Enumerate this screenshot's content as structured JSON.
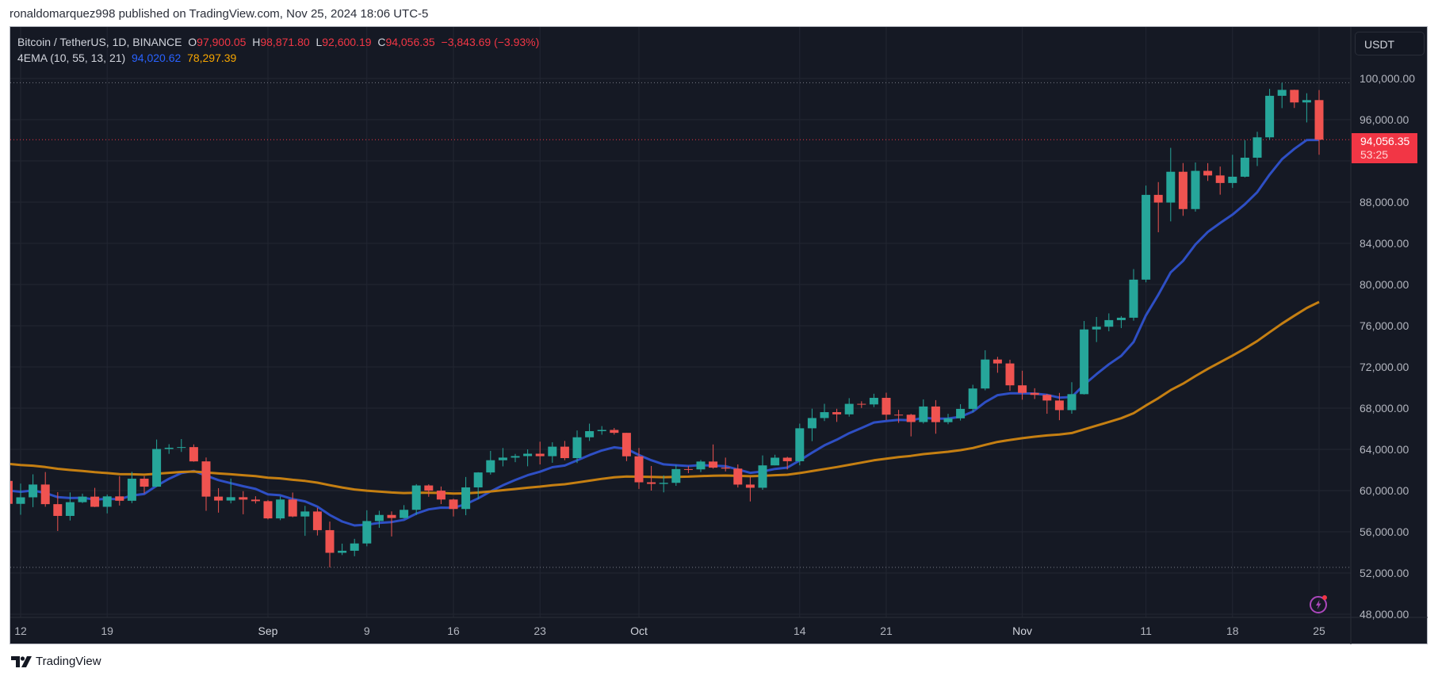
{
  "header": {
    "published": "ronaldomarquez998 published on TradingView.com, Nov 25, 2024 18:06 UTC-5"
  },
  "legend": {
    "symbol": "Bitcoin / TetherUS, 1D, BINANCE",
    "o_label": "O",
    "o": "97,900.05",
    "h_label": "H",
    "h": "98,871.80",
    "l_label": "L",
    "l": "92,600.19",
    "c_label": "C",
    "c": "94,056.35",
    "change": "−3,843.69 (−3.93%)",
    "indicator": "4EMA (10, 55, 13, 21)",
    "ema1": "94,020.62",
    "ema2": "78,297.39"
  },
  "price_axis": {
    "currency": "USDT",
    "labels": [
      "100,000.00",
      "96,000.00",
      "88,000.00",
      "84,000.00",
      "80,000.00",
      "76,000.00",
      "72,000.00",
      "68,000.00",
      "64,000.00",
      "60,000.00",
      "56,000.00",
      "52,000.00",
      "48,000.00"
    ],
    "last_price": "94,056.35",
    "countdown": "53:25"
  },
  "time_axis": {
    "labels": [
      "12",
      "19",
      "Sep",
      "9",
      "16",
      "23",
      "Oct",
      "14",
      "21",
      "Nov",
      "11",
      "18",
      "25"
    ]
  },
  "footer": {
    "brand": "TradingView"
  },
  "colors": {
    "up": "#26a69a",
    "down": "#ef5350",
    "ema10": "#2e4fc4",
    "ema55": "#c57f12",
    "background": "#151924"
  },
  "chart_data": {
    "type": "candlestick",
    "title": "Bitcoin / TetherUS, 1D, BINANCE",
    "ylim": [
      47500,
      101500
    ],
    "yticks": [
      48000,
      52000,
      56000,
      60000,
      64000,
      68000,
      72000,
      76000,
      80000,
      84000,
      88000,
      92000,
      96000,
      100000
    ],
    "xticks": [
      "2024-08-12",
      "2024-08-19",
      "2024-09-01",
      "2024-09-09",
      "2024-09-16",
      "2024-09-23",
      "2024-10-01",
      "2024-10-14",
      "2024-10-21",
      "2024-11-01",
      "2024-11-11",
      "2024-11-18",
      "2024-11-25"
    ],
    "grid": true,
    "columns": [
      "date",
      "open",
      "high",
      "low",
      "close"
    ],
    "candles": [
      [
        "2024-08-11",
        60940,
        61858,
        58286,
        58713
      ],
      [
        "2024-08-12",
        58713,
        60680,
        57650,
        59346
      ],
      [
        "2024-08-13",
        59346,
        61578,
        58392,
        60587
      ],
      [
        "2024-08-14",
        60587,
        61800,
        58433,
        58683
      ],
      [
        "2024-08-15",
        58683,
        59849,
        56078,
        57541
      ],
      [
        "2024-08-16",
        57541,
        59817,
        57098,
        58875
      ],
      [
        "2024-08-17",
        58875,
        59700,
        58785,
        59413
      ],
      [
        "2024-08-18",
        59413,
        60263,
        58400,
        58425
      ],
      [
        "2024-08-19",
        58425,
        59618,
        57787,
        59438
      ],
      [
        "2024-08-20",
        59438,
        61400,
        58548,
        59013
      ],
      [
        "2024-08-21",
        59013,
        61820,
        58783,
        61157
      ],
      [
        "2024-08-22",
        61157,
        61400,
        59724,
        60381
      ],
      [
        "2024-08-23",
        60381,
        64955,
        60345,
        64038
      ],
      [
        "2024-08-24",
        64038,
        64500,
        63564,
        64158
      ],
      [
        "2024-08-25",
        64158,
        65000,
        63750,
        64220
      ],
      [
        "2024-08-26",
        64220,
        64481,
        62800,
        62834
      ],
      [
        "2024-08-27",
        62834,
        63212,
        58034,
        59415
      ],
      [
        "2024-08-28",
        59415,
        60234,
        57860,
        59034
      ],
      [
        "2024-08-29",
        59034,
        61166,
        58760,
        59359
      ],
      [
        "2024-08-30",
        59359,
        59944,
        57701,
        59123
      ],
      [
        "2024-08-31",
        59123,
        59450,
        58745,
        58973
      ],
      [
        "2024-09-01",
        58973,
        59084,
        57201,
        57301
      ],
      [
        "2024-09-02",
        57301,
        59425,
        57128,
        59132
      ],
      [
        "2024-09-03",
        59132,
        59809,
        57415,
        57487
      ],
      [
        "2024-09-04",
        57487,
        58519,
        55606,
        57970
      ],
      [
        "2024-09-05",
        57970,
        58327,
        55643,
        56160
      ],
      [
        "2024-09-06",
        56160,
        56995,
        52550,
        53962
      ],
      [
        "2024-09-07",
        53962,
        54850,
        53745,
        54160
      ],
      [
        "2024-09-08",
        54160,
        55318,
        53629,
        54869
      ],
      [
        "2024-09-09",
        54869,
        58088,
        54591,
        57042
      ],
      [
        "2024-09-10",
        57042,
        58044,
        56386,
        57635
      ],
      [
        "2024-09-11",
        57635,
        57981,
        55545,
        57338
      ],
      [
        "2024-09-12",
        57338,
        58588,
        57311,
        58132
      ],
      [
        "2024-09-13",
        58132,
        60625,
        57632,
        60498
      ],
      [
        "2024-09-14",
        60498,
        60610,
        59400,
        59993
      ],
      [
        "2024-09-15",
        59993,
        60395,
        58691,
        59132
      ],
      [
        "2024-09-16",
        59132,
        59210,
        57493,
        58213
      ],
      [
        "2024-09-17",
        58213,
        61320,
        57610,
        60309
      ],
      [
        "2024-09-18",
        60309,
        61786,
        59174,
        61759
      ],
      [
        "2024-09-19",
        61759,
        63850,
        61555,
        62947
      ],
      [
        "2024-09-20",
        62947,
        64133,
        62350,
        63201
      ],
      [
        "2024-09-21",
        63201,
        63559,
        62758,
        63348
      ],
      [
        "2024-09-22",
        63348,
        64000,
        62357,
        63578
      ],
      [
        "2024-09-23",
        63578,
        64745,
        62538,
        63339
      ],
      [
        "2024-09-24",
        63339,
        64688,
        62700,
        64262
      ],
      [
        "2024-09-25",
        64262,
        64817,
        62947,
        63152
      ],
      [
        "2024-09-26",
        63152,
        65839,
        62670,
        65173
      ],
      [
        "2024-09-27",
        65173,
        66498,
        64819,
        65769
      ],
      [
        "2024-09-28",
        65769,
        66260,
        65422,
        65887
      ],
      [
        "2024-09-29",
        65887,
        66076,
        65432,
        65604
      ],
      [
        "2024-09-30",
        65604,
        65604,
        62856,
        63327
      ],
      [
        "2024-10-01",
        63327,
        64130,
        60164,
        60805
      ],
      [
        "2024-10-02",
        60805,
        62390,
        60000,
        60649
      ],
      [
        "2024-10-03",
        60649,
        61477,
        59828,
        60752
      ],
      [
        "2024-10-04",
        60752,
        62484,
        60459,
        62086
      ],
      [
        "2024-10-05",
        62086,
        62370,
        61689,
        62058
      ],
      [
        "2024-10-06",
        62058,
        62975,
        61798,
        62819
      ],
      [
        "2024-10-07",
        62819,
        64478,
        62128,
        62224
      ],
      [
        "2024-10-08",
        62224,
        63200,
        61860,
        62132
      ],
      [
        "2024-10-09",
        62132,
        62543,
        60300,
        60582
      ],
      [
        "2024-10-10",
        60582,
        61320,
        58946,
        60274
      ],
      [
        "2024-10-11",
        60274,
        63417,
        60078,
        62445
      ],
      [
        "2024-10-12",
        62445,
        63480,
        62445,
        63193
      ],
      [
        "2024-10-13",
        63193,
        63285,
        62050,
        62851
      ],
      [
        "2024-10-14",
        62851,
        66500,
        62450,
        66046
      ],
      [
        "2024-10-15",
        66046,
        67950,
        64800,
        67041
      ],
      [
        "2024-10-16",
        67041,
        68424,
        66750,
        67612
      ],
      [
        "2024-10-17",
        67612,
        67939,
        66666,
        67399
      ],
      [
        "2024-10-18",
        67399,
        68969,
        67177,
        68418
      ],
      [
        "2024-10-19",
        68418,
        68668,
        68013,
        68362
      ],
      [
        "2024-10-20",
        68362,
        69400,
        68100,
        69001
      ],
      [
        "2024-10-21",
        69001,
        69500,
        66835,
        67367
      ],
      [
        "2024-10-22",
        67367,
        67836,
        66571,
        67362
      ],
      [
        "2024-10-23",
        67362,
        67451,
        65260,
        66653
      ],
      [
        "2024-10-24",
        66653,
        68850,
        66510,
        68161
      ],
      [
        "2024-10-25",
        68161,
        68778,
        65520,
        66642
      ],
      [
        "2024-10-26",
        66642,
        67454,
        66439,
        67014
      ],
      [
        "2024-10-27",
        67014,
        68388,
        66800,
        67929
      ],
      [
        "2024-10-28",
        67929,
        70270,
        67618,
        69907
      ],
      [
        "2024-10-29",
        69907,
        73620,
        69729,
        72720
      ],
      [
        "2024-10-30",
        72720,
        72984,
        71436,
        72339
      ],
      [
        "2024-10-31",
        72339,
        72700,
        69685,
        70215
      ],
      [
        "2024-11-01",
        70215,
        71632,
        68820,
        69482
      ],
      [
        "2024-11-02",
        69482,
        69934,
        68888,
        69289
      ],
      [
        "2024-11-03",
        69289,
        69379,
        67458,
        68741
      ],
      [
        "2024-11-04",
        68741,
        69480,
        66835,
        67811
      ],
      [
        "2024-11-05",
        67811,
        70522,
        67458,
        69359
      ],
      [
        "2024-11-06",
        69359,
        76460,
        69322,
        75639
      ],
      [
        "2024-11-07",
        75639,
        76850,
        74416,
        75904
      ],
      [
        "2024-11-08",
        75904,
        77199,
        75465,
        76545
      ],
      [
        "2024-11-09",
        76545,
        76932,
        75773,
        76778
      ],
      [
        "2024-11-10",
        76778,
        81500,
        76492,
        80474
      ],
      [
        "2024-11-11",
        80474,
        89604,
        80216,
        88701
      ],
      [
        "2024-11-12",
        88701,
        89940,
        85072,
        87955
      ],
      [
        "2024-11-13",
        87955,
        93265,
        86127,
        90945
      ],
      [
        "2024-11-14",
        90945,
        91790,
        86668,
        87325
      ],
      [
        "2024-11-15",
        87325,
        91850,
        87073,
        91032
      ],
      [
        "2024-11-16",
        91032,
        91779,
        90057,
        90587
      ],
      [
        "2024-11-17",
        90587,
        91449,
        88722,
        89855
      ],
      [
        "2024-11-18",
        89855,
        92594,
        89376,
        90465
      ],
      [
        "2024-11-19",
        90465,
        94002,
        90389,
        92310
      ],
      [
        "2024-11-20",
        92310,
        94831,
        91500,
        94286
      ],
      [
        "2024-11-21",
        94286,
        98988,
        94040,
        98318
      ],
      [
        "2024-11-22",
        98318,
        99588,
        97122,
        98892
      ],
      [
        "2024-11-23",
        98892,
        98908,
        97136,
        97672
      ],
      [
        "2024-11-24",
        97672,
        98564,
        95734,
        97900
      ],
      [
        "2024-11-25",
        97900,
        98871.8,
        92600.19,
        94056.35
      ]
    ],
    "ema": [
      {
        "length": 10,
        "start": 60000,
        "last": 94020.62
      },
      {
        "length": 55,
        "start": 62600,
        "last": 78297.39
      }
    ],
    "reference_lines": {
      "high": 99588,
      "low": 52550,
      "last": 94056.35
    }
  }
}
